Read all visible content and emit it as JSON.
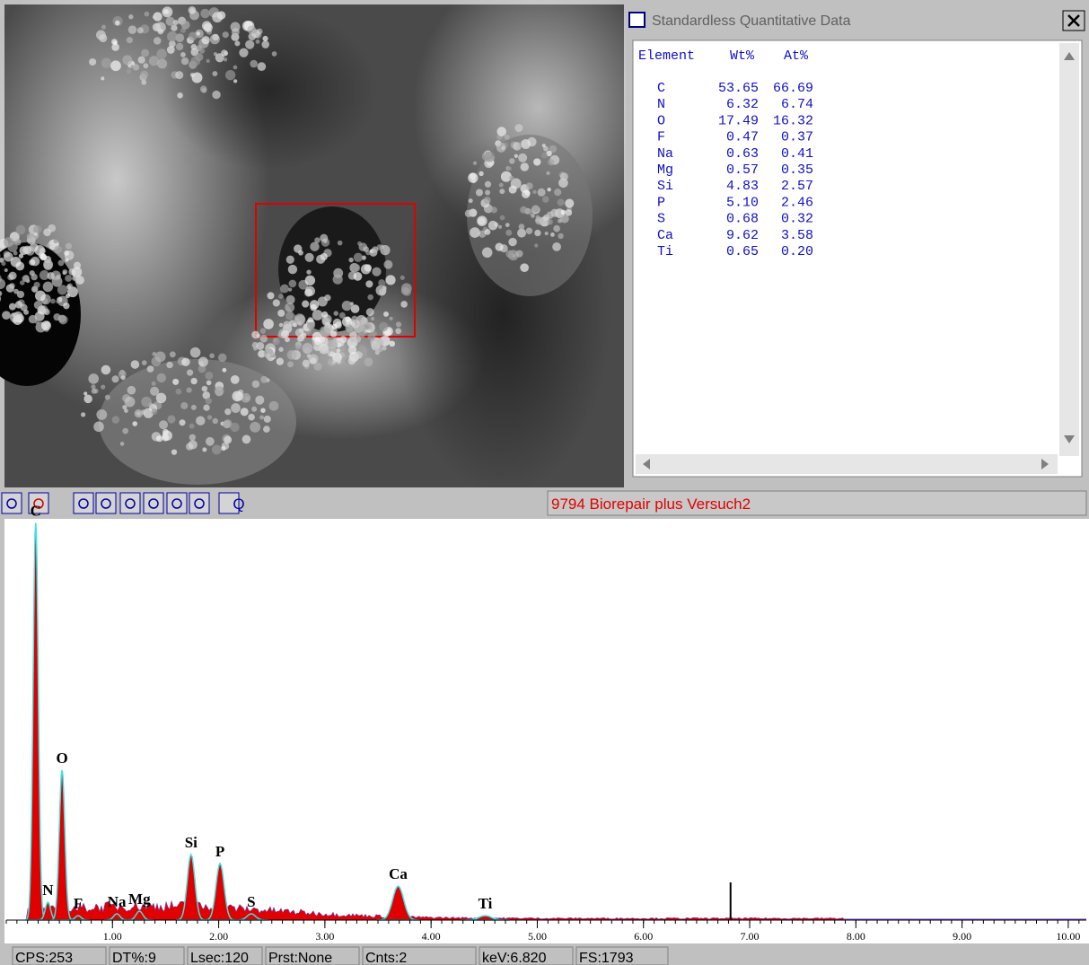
{
  "window": {
    "title": "Standardless Quantitative Data",
    "table": {
      "header": [
        "Element",
        "Wt%",
        "At%"
      ],
      "rows": [
        [
          "C",
          "53.65",
          "66.69"
        ],
        [
          "N",
          "6.32",
          "6.74"
        ],
        [
          "O",
          "17.49",
          "16.32"
        ],
        [
          "F",
          "0.47",
          "0.37"
        ],
        [
          "Na",
          "0.63",
          "0.41"
        ],
        [
          "Mg",
          "0.57",
          "0.35"
        ],
        [
          "Si",
          "4.83",
          "2.57"
        ],
        [
          "P",
          "5.10",
          "2.46"
        ],
        [
          "S",
          "0.68",
          "0.32"
        ],
        [
          "Ca",
          "9.62",
          "3.58"
        ],
        [
          "Ti",
          "0.65",
          "0.20"
        ]
      ]
    }
  },
  "toolbar": {
    "zoom_button": "Q",
    "sample_name": "9794 Biorepair plus Versuch2"
  },
  "spectrum": {
    "xlim": [
      0,
      10.17
    ],
    "ylim": [
      0,
      1793
    ],
    "xticks": [
      {
        "value": 1,
        "label": "1.00"
      },
      {
        "value": 2,
        "label": "2.00"
      },
      {
        "value": 3,
        "label": "3.00"
      },
      {
        "value": 4,
        "label": "4.00"
      },
      {
        "value": 5,
        "label": "5.00"
      },
      {
        "value": 6,
        "label": "6.00"
      },
      {
        "value": 7,
        "label": "7.00"
      },
      {
        "value": 8,
        "label": "8.00"
      },
      {
        "value": 9,
        "label": "9.00"
      },
      {
        "value": 10,
        "label": "10.00"
      }
    ],
    "peaks": [
      {
        "label": "C",
        "x": 0.277,
        "height": 1775
      },
      {
        "label": "N",
        "x": 0.392,
        "height": 80
      },
      {
        "label": "O",
        "x": 0.525,
        "height": 670
      },
      {
        "label": "F",
        "x": 0.677,
        "height": 20
      },
      {
        "label": "Na",
        "x": 1.041,
        "height": 28
      },
      {
        "label": "Mg",
        "x": 1.254,
        "height": 40
      },
      {
        "label": "Si",
        "x": 1.74,
        "height": 293
      },
      {
        "label": "P",
        "x": 2.013,
        "height": 253
      },
      {
        "label": "S",
        "x": 2.307,
        "height": 28
      },
      {
        "label": "Ca",
        "x": 3.69,
        "height": 152
      },
      {
        "label": "Ti",
        "x": 4.51,
        "height": 20
      }
    ],
    "cursor_kev": 6.82
  },
  "status": [
    "CPS:253",
    "DT%:9",
    "Lsec:120",
    "Prst:None",
    "Cnts:2",
    "keV:6.820",
    "FS:1793"
  ]
}
